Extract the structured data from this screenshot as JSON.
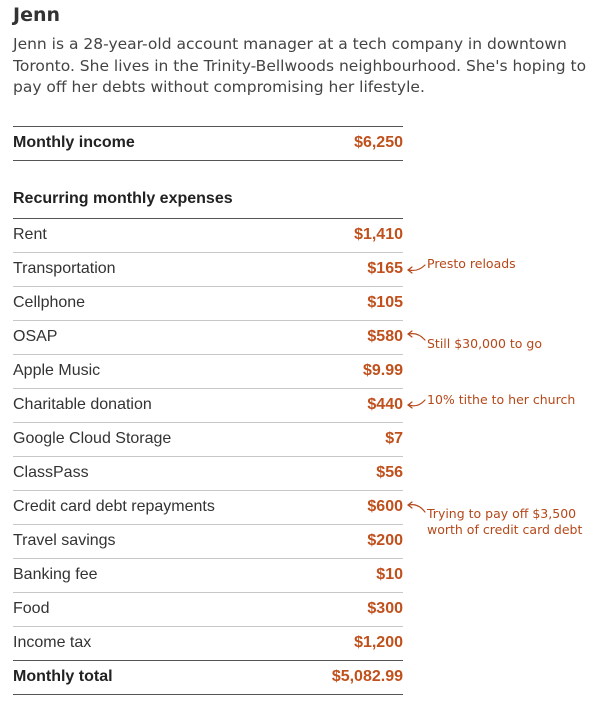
{
  "profile": {
    "name": "Jenn",
    "bio": "Jenn is a 28-year-old account manager at a tech company in downtown Toronto. She lives in the Trinity-Bellwoods neighbourhood. She's hoping to pay off her debts without compromising her lifestyle."
  },
  "income": {
    "label": "Monthly income",
    "amount": "$6,250"
  },
  "expenses": {
    "title": "Recurring monthly expenses",
    "items": [
      {
        "label": "Rent",
        "amount": "$1,410"
      },
      {
        "label": "Transportation",
        "amount": "$165"
      },
      {
        "label": "Cellphone",
        "amount": "$105"
      },
      {
        "label": "OSAP",
        "amount": "$580"
      },
      {
        "label": "Apple Music",
        "amount": "$9.99"
      },
      {
        "label": "Charitable donation",
        "amount": "$440"
      },
      {
        "label": "Google Cloud Storage",
        "amount": "$7"
      },
      {
        "label": "ClassPass",
        "amount": "$56"
      },
      {
        "label": "Credit card debt repayments",
        "amount": "$600"
      },
      {
        "label": "Travel savings",
        "amount": "$200"
      },
      {
        "label": "Banking fee",
        "amount": "$10"
      },
      {
        "label": "Food",
        "amount": "$300"
      },
      {
        "label": "Income tax",
        "amount": "$1,200"
      }
    ],
    "total": {
      "label": "Monthly total",
      "amount": "$5,082.99"
    }
  },
  "annotations": {
    "transportation": "Presto reloads",
    "osap": "Still $30,000 to go",
    "charitable": "10% tithe to her church",
    "credit_line1": "Trying to pay off $3,500",
    "credit_line2": "worth of credit card debt"
  },
  "colors": {
    "amount": "#c0501c",
    "annotation": "#b5481a"
  }
}
